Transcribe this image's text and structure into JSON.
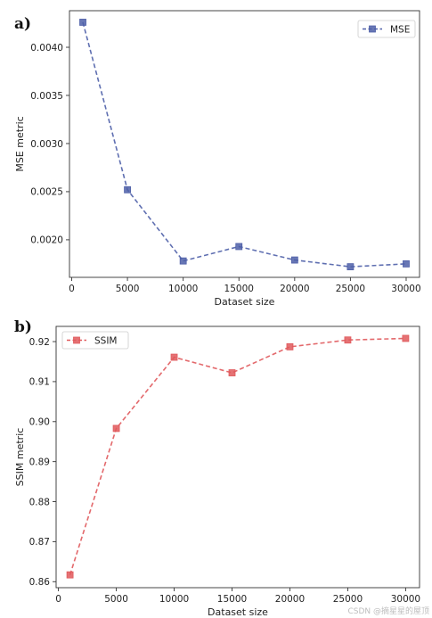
{
  "watermark": "CSDN @摘星星的屋顶",
  "chart_data": [
    {
      "type": "line",
      "panel_label": "a)",
      "x": [
        1000,
        5000,
        10000,
        15000,
        20000,
        25000,
        30000
      ],
      "series": [
        {
          "name": "MSE",
          "values": [
            0.00426,
            0.00252,
            0.00178,
            0.00193,
            0.00179,
            0.00172,
            0.00175
          ]
        }
      ],
      "xlabel": "Dataset size",
      "ylabel": "MSE metric",
      "xlim": [
        -200,
        31200
      ],
      "ylim": [
        0.00161,
        0.00438
      ],
      "xticks": [
        0,
        5000,
        10000,
        15000,
        20000,
        25000,
        30000
      ],
      "yticks": [
        0.002,
        0.0025,
        0.003,
        0.0035,
        0.004
      ],
      "ytick_labels": [
        "0.0020",
        "0.0025",
        "0.0030",
        "0.0035",
        "0.0040"
      ],
      "color": "#4e5fa8",
      "line_style": "dashed",
      "marker": "square",
      "grid": false,
      "legend_position": "top-right"
    },
    {
      "type": "line",
      "panel_label": "b)",
      "x": [
        1000,
        5000,
        10000,
        15000,
        20000,
        25000,
        30000
      ],
      "series": [
        {
          "name": "SSIM",
          "values": [
            0.8617,
            0.8983,
            0.9161,
            0.9122,
            0.9187,
            0.9204,
            0.9208
          ]
        }
      ],
      "xlabel": "Dataset size",
      "ylabel": "SSIM metric",
      "xlim": [
        -200,
        31200
      ],
      "ylim": [
        0.8585,
        0.9238
      ],
      "xticks": [
        0,
        5000,
        10000,
        15000,
        20000,
        25000,
        30000
      ],
      "yticks": [
        0.86,
        0.87,
        0.88,
        0.89,
        0.9,
        0.91,
        0.92
      ],
      "ytick_labels": [
        "0.86",
        "0.87",
        "0.88",
        "0.89",
        "0.90",
        "0.91",
        "0.92"
      ],
      "color": "#e0595c",
      "line_style": "dashed",
      "marker": "square",
      "grid": false,
      "legend_position": "top-left"
    }
  ]
}
